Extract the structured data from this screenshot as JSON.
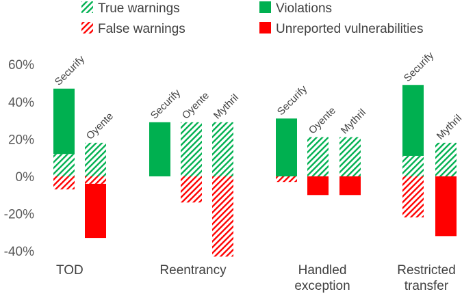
{
  "chart_data": {
    "type": "bar",
    "subtype": "diverging stacked bar",
    "yaxis": {
      "ylim": [
        -40,
        60
      ],
      "ticks": [
        60,
        40,
        20,
        0,
        -20,
        -40
      ],
      "tick_labels": [
        "60%",
        "40%",
        "20%",
        "0%",
        "-20%",
        "-40%"
      ],
      "unit": "%"
    },
    "grid": false,
    "legend": {
      "placement": "top",
      "entries": [
        {
          "key": "true_warnings",
          "label": "True warnings",
          "color": "#00B050",
          "pattern": "hatched"
        },
        {
          "key": "violations",
          "label": "Violations",
          "color": "#00B050",
          "pattern": "solid"
        },
        {
          "key": "false_warnings",
          "label": "False warnings",
          "color": "#FF0000",
          "pattern": "hatched"
        },
        {
          "key": "unreported",
          "label": "Unreported vulnerabilities",
          "color": "#FF0000",
          "pattern": "solid"
        }
      ]
    },
    "groups": [
      {
        "category_lines": [
          "TOD"
        ],
        "bars": [
          {
            "tool": "Securify",
            "true_warnings": 12,
            "violations": 35,
            "false_warnings": 7,
            "unreported": 0
          },
          {
            "tool": "Oyente",
            "true_warnings": 18,
            "violations": 0,
            "false_warnings": 4,
            "unreported": 29
          }
        ]
      },
      {
        "category_lines": [
          "Reentrancy"
        ],
        "bars": [
          {
            "tool": "Securify",
            "true_warnings": 0,
            "violations": 29,
            "false_warnings": 0,
            "unreported": 0
          },
          {
            "tool": "Oyente",
            "true_warnings": 29,
            "violations": 0,
            "false_warnings": 14,
            "unreported": 0
          },
          {
            "tool": "Mythril",
            "true_warnings": 29,
            "violations": 0,
            "false_warnings": 43,
            "unreported": 0
          }
        ]
      },
      {
        "category_lines": [
          "Handled",
          "exception"
        ],
        "bars": [
          {
            "tool": "Securify",
            "true_warnings": 0,
            "violations": 31,
            "false_warnings": 3,
            "unreported": 0
          },
          {
            "tool": "Oyente",
            "true_warnings": 21,
            "violations": 0,
            "false_warnings": 0,
            "unreported": 10
          },
          {
            "tool": "Mythril",
            "true_warnings": 21,
            "violations": 0,
            "false_warnings": 0,
            "unreported": 10
          }
        ]
      },
      {
        "category_lines": [
          "Restricted",
          "transfer"
        ],
        "bars": [
          {
            "tool": "Securify",
            "true_warnings": 11,
            "violations": 38,
            "false_warnings": 22,
            "unreported": 0
          },
          {
            "tool": "Mythril",
            "true_warnings": 18,
            "violations": 0,
            "false_warnings": 0,
            "unreported": 32
          }
        ]
      }
    ]
  }
}
